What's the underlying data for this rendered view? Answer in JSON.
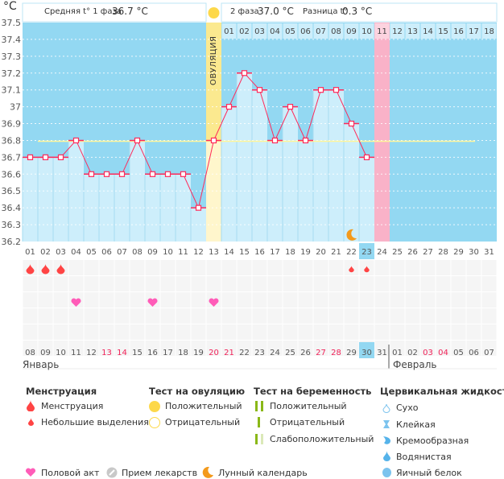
{
  "header": {
    "unit": "°C",
    "phase1_label": "Средняя t° 1 фаза",
    "phase1_value": "36.7 °C",
    "phase2_label": "2 фаза",
    "phase2_value": "37.0 °C",
    "diff_label": "Разница t°",
    "diff_value": "0.3 °C",
    "ovulation_label": "ОВУЛЯЦИЯ"
  },
  "colors": {
    "background": "#93d8f2",
    "bar": "#cdeefb",
    "line": "#ff2a5a",
    "ovulation": "#fbe98f",
    "ovulation_light": "#fff6cc",
    "period_expected": "#f9b2c8",
    "coverline": "#fff59a",
    "highlight": "#93d8f2",
    "weekend": "#f0245a"
  },
  "chart_data": {
    "type": "line",
    "xlabel": "",
    "ylabel": "°C",
    "ylim": [
      36.2,
      37.5
    ],
    "yticks": [
      "37.5",
      "37.4",
      "37.3",
      "37.2",
      "37.1",
      "37",
      "36.9",
      "36.8",
      "36.7",
      "36.6",
      "36.5",
      "36.4",
      "36.3",
      "36.2"
    ],
    "cycle_days": [
      "01",
      "02",
      "03",
      "04",
      "05",
      "06",
      "07",
      "08",
      "09",
      "10",
      "11",
      "12",
      "13",
      "14",
      "15",
      "16",
      "17",
      "18",
      "19",
      "20",
      "21",
      "22",
      "23",
      "24",
      "25",
      "26",
      "27",
      "28",
      "29",
      "30",
      "31"
    ],
    "temperatures": [
      36.7,
      36.7,
      36.7,
      36.8,
      36.6,
      36.6,
      36.6,
      36.8,
      36.6,
      36.6,
      36.6,
      36.4,
      36.8,
      37.0,
      37.2,
      37.1,
      36.8,
      37.0,
      36.8,
      37.1,
      37.1,
      36.9,
      36.7,
      null,
      null,
      null,
      null,
      null,
      null,
      null,
      null
    ],
    "coverline": 36.8,
    "ovulation_day": 13,
    "today_day": 23,
    "expected_period_day": 24,
    "phase2_days": [
      "01",
      "02",
      "03",
      "04",
      "05",
      "06",
      "07",
      "08",
      "09",
      "10",
      "11",
      "12",
      "13",
      "14",
      "15",
      "16",
      "17",
      "18"
    ],
    "moon_day": 22,
    "grid": true
  },
  "calendar": {
    "dates": [
      "08",
      "09",
      "10",
      "11",
      "12",
      "13",
      "14",
      "15",
      "16",
      "17",
      "18",
      "19",
      "20",
      "21",
      "22",
      "23",
      "24",
      "25",
      "26",
      "27",
      "28",
      "29",
      "30",
      "31",
      "01",
      "02",
      "03",
      "04",
      "05",
      "06",
      "07"
    ],
    "weekend_indices": [
      5,
      6,
      12,
      13,
      19,
      20,
      26,
      27
    ],
    "month1": "Январь",
    "month2": "Февраль",
    "menstruation_days": [
      1,
      2,
      3
    ],
    "spotting_days": [
      22,
      23
    ],
    "intercourse_days": [
      4,
      9,
      13
    ]
  },
  "legend": {
    "menstruation": {
      "title": "Менструация",
      "items": [
        "Менструация",
        "Небольшие выделения"
      ]
    },
    "ovulation_test": {
      "title": "Тест на овуляцию",
      "items": [
        "Положительный",
        "Отрицательный"
      ]
    },
    "pregnancy_test": {
      "title": "Тест на беременность",
      "items": [
        "Положительный",
        "Отрицательный",
        "Слабоположительный"
      ]
    },
    "cervical_fluid": {
      "title": "Цервикальная жидкость",
      "items": [
        "Сухо",
        "Клейкая",
        "Кремообразная",
        "Водянистая",
        "Яичный белок"
      ]
    },
    "other": [
      "Половой акт",
      "Прием лекарств",
      "Лунный календарь"
    ]
  }
}
